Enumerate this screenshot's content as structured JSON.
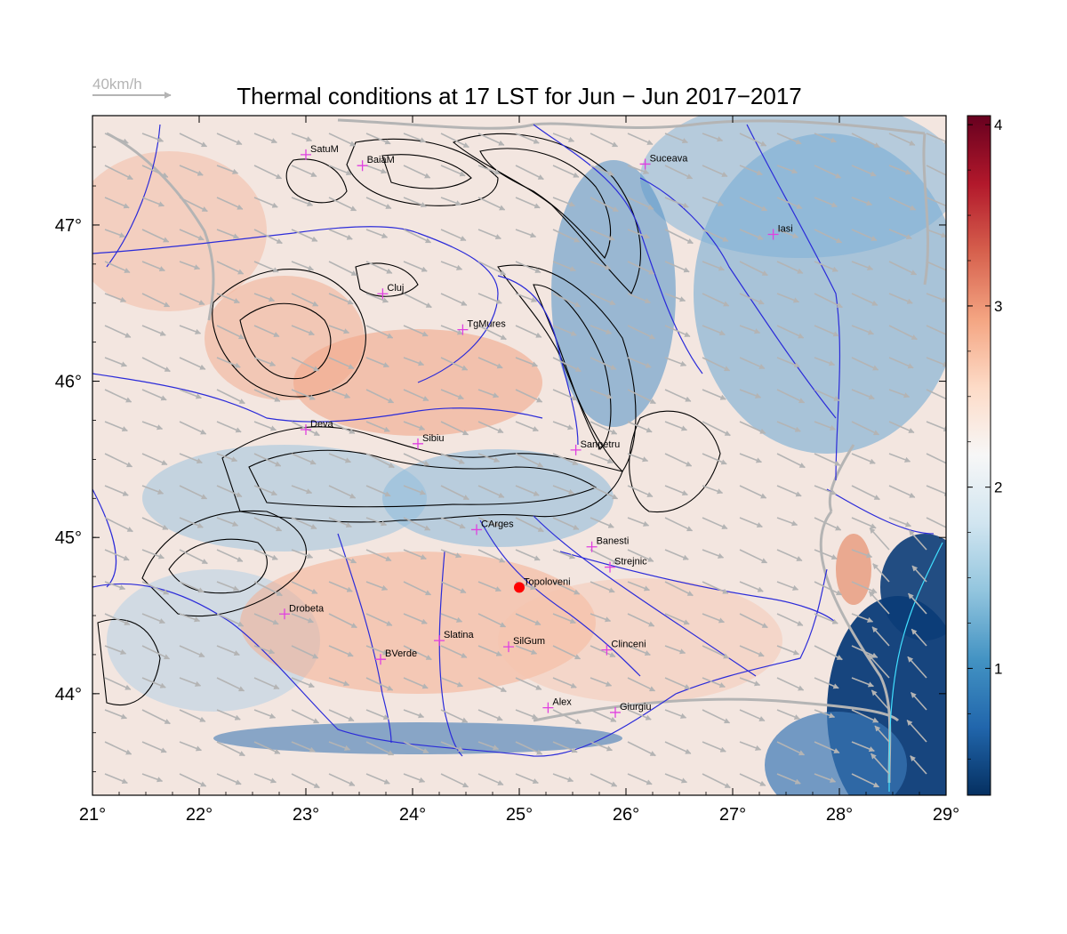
{
  "title": "Thermal conditions at 17 LST for Jun − Jun  2017−2017",
  "wind_scale": {
    "label": "40km/h"
  },
  "map": {
    "lon_range": [
      21,
      29
    ],
    "lat_range": [
      43.35,
      47.7
    ],
    "x_ticks": [
      {
        "value": 21,
        "label": "21°"
      },
      {
        "value": 22,
        "label": "22°"
      },
      {
        "value": 23,
        "label": "23°"
      },
      {
        "value": 24,
        "label": "24°"
      },
      {
        "value": 25,
        "label": "25°"
      },
      {
        "value": 26,
        "label": "26°"
      },
      {
        "value": 27,
        "label": "27°"
      },
      {
        "value": 28,
        "label": "28°"
      },
      {
        "value": 29,
        "label": "29°"
      }
    ],
    "y_ticks": [
      {
        "value": 44,
        "label": "44°"
      },
      {
        "value": 45,
        "label": "45°"
      },
      {
        "value": 46,
        "label": "46°"
      },
      {
        "value": 47,
        "label": "47°"
      }
    ],
    "cities": [
      {
        "name": "SatuM",
        "lon": 23.0,
        "lat": 47.45
      },
      {
        "name": "BaiaM",
        "lon": 23.53,
        "lat": 47.38
      },
      {
        "name": "Suceava",
        "lon": 26.18,
        "lat": 47.39
      },
      {
        "name": "Iasi",
        "lon": 27.38,
        "lat": 46.94
      },
      {
        "name": "Cluj",
        "lon": 23.72,
        "lat": 46.56
      },
      {
        "name": "TgMures",
        "lon": 24.47,
        "lat": 46.33
      },
      {
        "name": "Deva",
        "lon": 23.0,
        "lat": 45.69
      },
      {
        "name": "Sibiu",
        "lon": 24.05,
        "lat": 45.6
      },
      {
        "name": "Sanpetru",
        "lon": 25.53,
        "lat": 45.56
      },
      {
        "name": "CArges",
        "lon": 24.6,
        "lat": 45.05
      },
      {
        "name": "Banesti",
        "lon": 25.68,
        "lat": 44.94
      },
      {
        "name": "Strejnic",
        "lon": 25.85,
        "lat": 44.81
      },
      {
        "name": "Topoloveni",
        "lon": 25.0,
        "lat": 44.68
      },
      {
        "name": "Drobeta",
        "lon": 22.8,
        "lat": 44.51
      },
      {
        "name": "Slatina",
        "lon": 24.25,
        "lat": 44.34
      },
      {
        "name": "SilGum",
        "lon": 24.9,
        "lat": 44.3
      },
      {
        "name": "Clinceni",
        "lon": 25.82,
        "lat": 44.28
      },
      {
        "name": "BVerde",
        "lon": 23.7,
        "lat": 44.22
      },
      {
        "name": "Alex",
        "lon": 25.27,
        "lat": 43.91
      },
      {
        "name": "Giurgiu",
        "lon": 25.9,
        "lat": 43.88
      }
    ],
    "highlight_city": "Topoloveni"
  },
  "colorbar": {
    "min": 0.3,
    "max": 4.05,
    "labels": [
      {
        "value": 1,
        "label": "1"
      },
      {
        "value": 2,
        "label": "2"
      },
      {
        "value": 3,
        "label": "3"
      },
      {
        "value": 4,
        "label": "4"
      }
    ],
    "stops": [
      "#053061",
      "#2166ac",
      "#4393c3",
      "#92c5de",
      "#d1e5f0",
      "#f7f7f7",
      "#fddbc7",
      "#f4a582",
      "#d6604d",
      "#b2182b",
      "#67001f"
    ]
  },
  "colors": {
    "cities": "#e040e0",
    "highlight": "#ff0000",
    "rivers": "#2b2bd9",
    "borders": "#b4b4b4",
    "contours": "#000000",
    "wind": "#b4b4b4",
    "sea": "#093a73"
  }
}
